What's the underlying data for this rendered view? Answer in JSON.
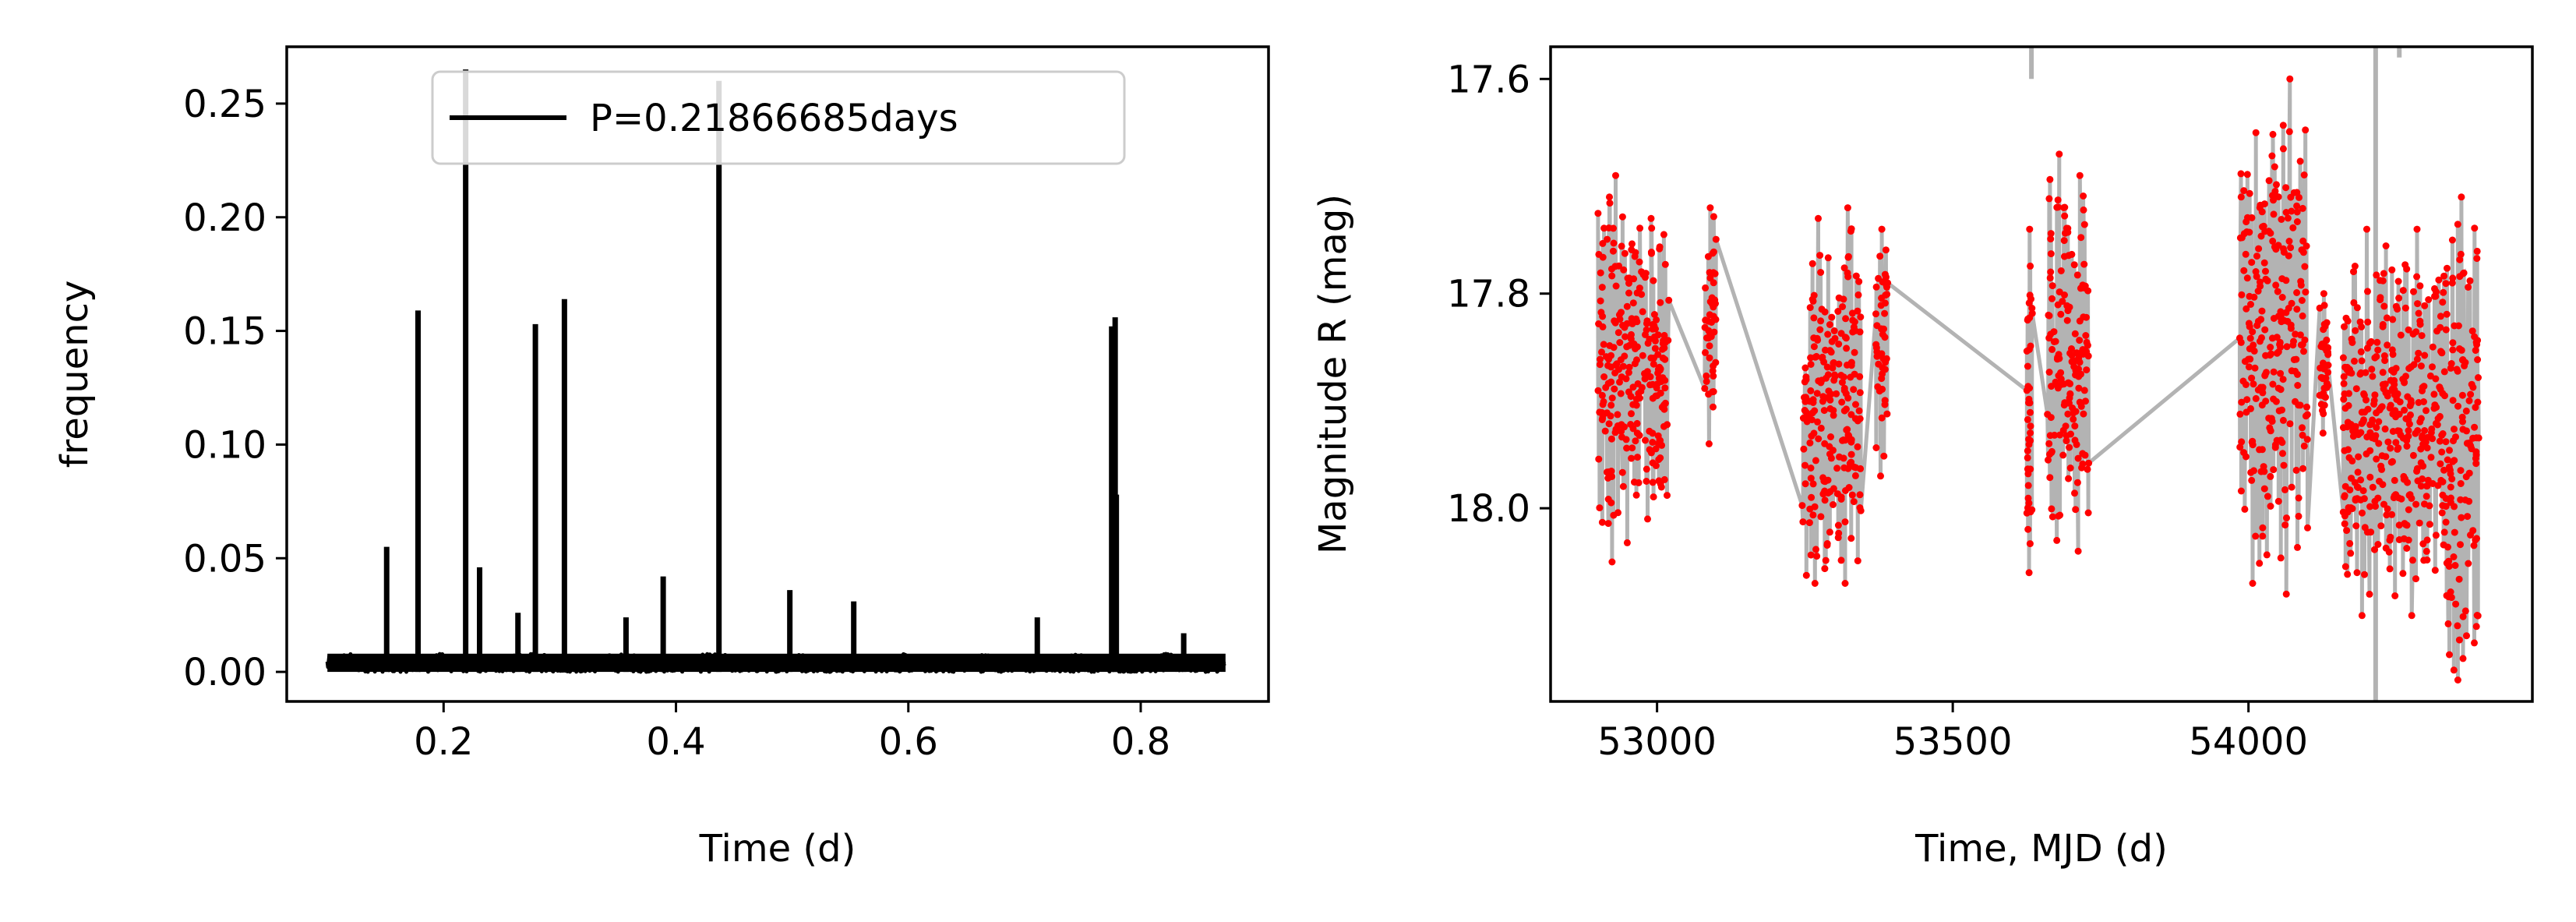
{
  "chart_data": [
    {
      "type": "line",
      "xlabel": "Time (d)",
      "ylabel": "frequency",
      "xlim": [
        0.065,
        0.91
      ],
      "ylim": [
        -0.013,
        0.275
      ],
      "xticks": [
        0.2,
        0.4,
        0.6,
        0.8
      ],
      "xtick_labels": [
        "0.2",
        "0.4",
        "0.6",
        "0.8"
      ],
      "yticks": [
        0.0,
        0.05,
        0.1,
        0.15,
        0.2,
        0.25
      ],
      "ytick_labels": [
        "0.00",
        "0.05",
        "0.10",
        "0.15",
        "0.20",
        "0.25"
      ],
      "x_range": [
        0.1,
        0.873
      ],
      "legend": {
        "placement": "top-center",
        "entries": [
          "P=0.21866685days"
        ]
      },
      "series": [
        {
          "name": "P=0.21866685days",
          "color": "#000000",
          "noise_floor": 0.008,
          "peaks": [
            {
              "x": 0.151,
              "y": 0.055
            },
            {
              "x": 0.178,
              "y": 0.159
            },
            {
              "x": 0.219,
              "y": 0.265
            },
            {
              "x": 0.231,
              "y": 0.046
            },
            {
              "x": 0.264,
              "y": 0.026
            },
            {
              "x": 0.279,
              "y": 0.153
            },
            {
              "x": 0.304,
              "y": 0.164
            },
            {
              "x": 0.357,
              "y": 0.024
            },
            {
              "x": 0.389,
              "y": 0.042
            },
            {
              "x": 0.437,
              "y": 0.26
            },
            {
              "x": 0.498,
              "y": 0.036
            },
            {
              "x": 0.553,
              "y": 0.031
            },
            {
              "x": 0.711,
              "y": 0.024
            },
            {
              "x": 0.775,
              "y": 0.152
            },
            {
              "x": 0.778,
              "y": 0.156
            },
            {
              "x": 0.779,
              "y": 0.078
            },
            {
              "x": 0.837,
              "y": 0.017
            }
          ]
        }
      ],
      "grid": false
    },
    {
      "type": "scatter",
      "xlabel": "Time, MJD (d)",
      "ylabel": "Magnitude R (mag)",
      "xlim": [
        52820,
        54480
      ],
      "ylim": [
        18.18,
        17.57
      ],
      "y_inverted": true,
      "xticks": [
        53000,
        53500,
        54000
      ],
      "xtick_labels": [
        "53000",
        "53500",
        "54000"
      ],
      "yticks": [
        17.6,
        17.8,
        18.0
      ],
      "ytick_labels": [
        "17.6",
        "17.8",
        "18.0"
      ],
      "point_color": "#ff0000",
      "line_color": "#b3b3b3",
      "observing_seasons": [
        {
          "start": 52900,
          "end": 52960,
          "min_mag": 17.69,
          "max_mag": 18.05
        },
        {
          "start": 52960,
          "end": 53020,
          "min_mag": 17.73,
          "max_mag": 18.01
        },
        {
          "start": 53080,
          "end": 53100,
          "min_mag": 17.72,
          "max_mag": 17.94
        },
        {
          "start": 53245,
          "end": 53300,
          "min_mag": 17.73,
          "max_mag": 18.07
        },
        {
          "start": 53300,
          "end": 53345,
          "min_mag": 17.72,
          "max_mag": 18.07
        },
        {
          "start": 53370,
          "end": 53390,
          "min_mag": 17.74,
          "max_mag": 17.97
        },
        {
          "start": 53625,
          "end": 53635,
          "min_mag": 17.74,
          "max_mag": 18.06
        },
        {
          "start": 53660,
          "end": 53700,
          "min_mag": 17.67,
          "max_mag": 18.03
        },
        {
          "start": 53700,
          "end": 53730,
          "min_mag": 17.69,
          "max_mag": 18.04
        },
        {
          "start": 53985,
          "end": 54040,
          "min_mag": 17.65,
          "max_mag": 18.07
        },
        {
          "start": 54040,
          "end": 54100,
          "min_mag": 17.6,
          "max_mag": 18.08
        },
        {
          "start": 54120,
          "end": 54135,
          "min_mag": 17.8,
          "max_mag": 17.93
        },
        {
          "start": 54160,
          "end": 54240,
          "min_mag": 17.74,
          "max_mag": 18.1
        },
        {
          "start": 54240,
          "end": 54330,
          "min_mag": 17.74,
          "max_mag": 18.1
        },
        {
          "start": 54330,
          "end": 54390,
          "min_mag": 17.71,
          "max_mag": 18.16
        }
      ],
      "grid": false
    }
  ]
}
